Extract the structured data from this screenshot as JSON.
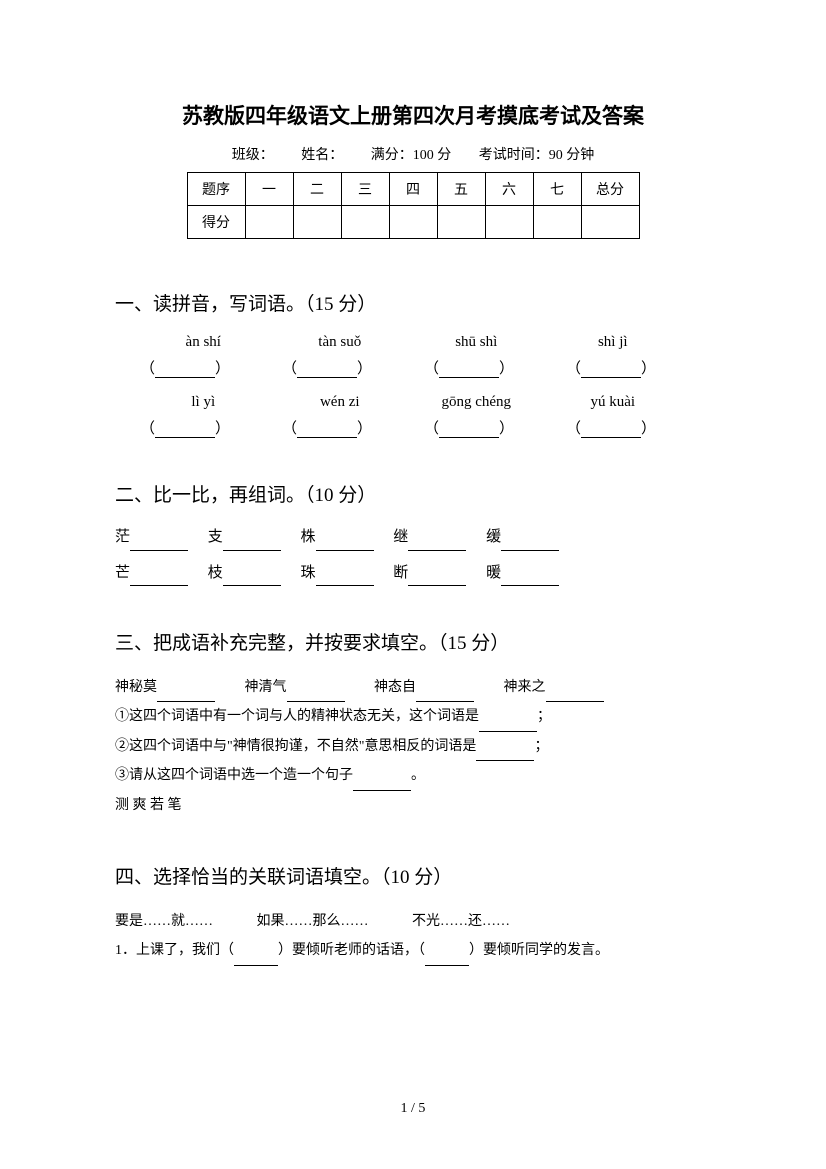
{
  "title": "苏教版四年级语文上册第四次月考摸底考试及答案",
  "info": {
    "class_label": "班级：",
    "name_label": "姓名：",
    "full_score": "满分：100 分",
    "exam_time": "考试时间：90 分钟"
  },
  "table": {
    "header": [
      "题序",
      "一",
      "二",
      "三",
      "四",
      "五",
      "六",
      "七",
      "总分"
    ],
    "row_label": "得分"
  },
  "section1": {
    "heading": "一、读拼音，写词语。（15 分）",
    "pinyin_row1": [
      "àn shí",
      "tàn suǒ",
      "shū   shì",
      "shì jì"
    ],
    "pinyin_row2": [
      "lì yì",
      "wén zi",
      "gōng chéng",
      "yú kuài"
    ]
  },
  "section2": {
    "heading": "二、比一比，再组词。（10 分）",
    "row1": [
      "茫",
      "支",
      "株",
      "继",
      "缓"
    ],
    "row2": [
      "芒",
      "枝",
      "珠",
      "断",
      "暖"
    ]
  },
  "section3": {
    "heading": "三、把成语补充完整，并按要求填空。（15 分）",
    "idioms": [
      "神秘莫",
      "神清气",
      "神态自",
      "神来之"
    ],
    "q1": "①这四个词语中有一个词与人的精神状态无关，这个词语是",
    "q1_tail": "；",
    "q2_a": "②这四个词语中与",
    "q2_quote": "\"神情很拘谨，不自然\"",
    "q2_b": "意思相反的词语是",
    "q2_tail": "；",
    "q3": "③请从这四个词语中选一个造一个句子",
    "q3_tail": "。",
    "answer_line": "测 爽 若 笔"
  },
  "section4": {
    "heading": "四、选择恰当的关联词语填空。（10 分）",
    "options": [
      "要是……就……",
      "如果……那么……",
      "不光……还……"
    ],
    "q1_a": "1．上课了，我们（",
    "q1_b": "）要倾听老师的话语，（",
    "q1_c": "）要倾听同学的发言。"
  },
  "page_num": "1 / 5",
  "colors": {
    "background": "#ffffff",
    "text": "#000000",
    "border": "#000000"
  }
}
